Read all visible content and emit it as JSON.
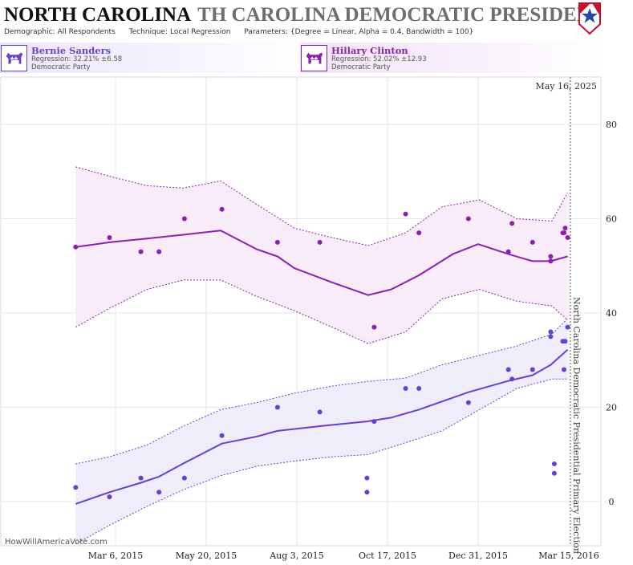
{
  "header": {
    "state_name": "NORTH CAROLINA",
    "title_ghost": "TH CAROLINA DEMOCRATIC PRESIDENTIAL P",
    "demographic_label": "Demographic:",
    "demographic_value": "All Respondents",
    "technique_label": "Technique:",
    "technique_value": "Local Regression",
    "parameters_label": "Parameters:",
    "parameters_value": "{Degree = Linear, Alpha = 0.4, Bandwidth = 100}"
  },
  "candidates": [
    {
      "name": "Bernie Sanders",
      "regression": "Regression: 32.21% ±6.58",
      "party": "Democratic Party",
      "icon": "democratic-donkey-icon",
      "color": "#6a3fd0"
    },
    {
      "name": "Hillary Clinton",
      "regression": "Regression: 52.02% ±12.93",
      "party": "Democratic Party",
      "icon": "democratic-donkey-icon",
      "color": "#8d1fb0"
    }
  ],
  "watermark": "HowWillAmericaVote.com",
  "colors": {
    "sanders": "#6a3fd0",
    "clinton": "#8d1fb0",
    "sanders_band": "#f0edfb",
    "clinton_band": "#f7ecf8",
    "grid": "#e6e6e6"
  },
  "chart_data": {
    "type": "scatter",
    "date_label": "May 16, 2025",
    "event_label": "North Carolina Democratic Presidential Primary Election",
    "x_ticks": [
      "Mar 6, 2015",
      "May 20, 2015",
      "Aug 3, 2015",
      "Oct 17, 2015",
      "Dec 31, 2015",
      "Mar 15, 2016"
    ],
    "y_ticks": [
      0,
      20,
      40,
      60,
      80
    ],
    "ylim": [
      -9,
      90
    ],
    "series": [
      {
        "name": "Bernie Sanders",
        "color": "#6a3fd0",
        "points": [
          [
            "2015-02-01",
            3
          ],
          [
            "2015-03-01",
            1
          ],
          [
            "2015-03-27",
            5
          ],
          [
            "2015-04-11",
            2
          ],
          [
            "2015-05-02",
            5
          ],
          [
            "2015-06-02",
            14
          ],
          [
            "2015-07-18",
            20
          ],
          [
            "2015-08-22",
            19
          ],
          [
            "2015-09-30",
            2
          ],
          [
            "2015-09-30",
            5
          ],
          [
            "2015-10-06",
            17
          ],
          [
            "2015-11-01",
            24
          ],
          [
            "2015-11-12",
            24
          ],
          [
            "2015-12-23",
            21
          ],
          [
            "2016-01-25",
            28
          ],
          [
            "2016-01-28",
            26
          ],
          [
            "2016-02-14",
            28
          ],
          [
            "2016-02-29",
            36
          ],
          [
            "2016-02-29",
            35
          ],
          [
            "2016-03-03",
            6
          ],
          [
            "2016-03-03",
            8
          ],
          [
            "2016-03-10",
            34
          ],
          [
            "2016-03-11",
            28
          ],
          [
            "2016-03-12",
            34
          ],
          [
            "2016-03-14",
            37
          ]
        ],
        "regression": [
          [
            "2015-02-01",
            -0.5
          ],
          [
            "2015-03-01",
            2
          ],
          [
            "2015-03-27",
            4
          ],
          [
            "2015-04-11",
            5.3
          ],
          [
            "2015-05-02",
            8.2
          ],
          [
            "2015-06-02",
            12.3
          ],
          [
            "2015-07-01",
            13.8
          ],
          [
            "2015-07-18",
            15
          ],
          [
            "2015-08-22",
            16
          ],
          [
            "2015-09-30",
            17
          ],
          [
            "2015-10-20",
            17.8
          ],
          [
            "2015-11-12",
            19.5
          ],
          [
            "2015-12-23",
            23.2
          ],
          [
            "2016-01-25",
            25.6
          ],
          [
            "2016-02-14",
            26.8
          ],
          [
            "2016-02-29",
            29
          ],
          [
            "2016-03-14",
            32.2
          ]
        ],
        "band_upper": [
          [
            "2015-02-01",
            8
          ],
          [
            "2015-03-01",
            9.5
          ],
          [
            "2015-04-01",
            12
          ],
          [
            "2015-05-01",
            16
          ],
          [
            "2015-06-01",
            19.5
          ],
          [
            "2015-07-01",
            21
          ],
          [
            "2015-08-01",
            23
          ],
          [
            "2015-09-01",
            24.5
          ],
          [
            "2015-10-01",
            25.5
          ],
          [
            "2015-11-01",
            26.2
          ],
          [
            "2015-12-01",
            29
          ],
          [
            "2016-01-01",
            31
          ],
          [
            "2016-02-01",
            33
          ],
          [
            "2016-03-01",
            35.5
          ],
          [
            "2016-03-14",
            38.8
          ]
        ],
        "band_lower": [
          [
            "2015-02-01",
            -9
          ],
          [
            "2015-03-01",
            -5
          ],
          [
            "2015-04-01",
            -1
          ],
          [
            "2015-05-01",
            2.5
          ],
          [
            "2015-06-01",
            5.5
          ],
          [
            "2015-07-01",
            7.5
          ],
          [
            "2015-08-01",
            8.6
          ],
          [
            "2015-09-01",
            9.5
          ],
          [
            "2015-10-01",
            10
          ],
          [
            "2015-11-01",
            12.5
          ],
          [
            "2015-12-01",
            15
          ],
          [
            "2016-01-01",
            19.5
          ],
          [
            "2016-02-01",
            24
          ],
          [
            "2016-03-01",
            26
          ],
          [
            "2016-03-14",
            26
          ]
        ]
      },
      {
        "name": "Hillary Clinton",
        "color": "#8d1fb0",
        "points": [
          [
            "2015-02-01",
            54
          ],
          [
            "2015-03-01",
            56
          ],
          [
            "2015-03-27",
            53
          ],
          [
            "2015-04-11",
            53
          ],
          [
            "2015-05-02",
            60
          ],
          [
            "2015-06-02",
            62
          ],
          [
            "2015-07-18",
            55
          ],
          [
            "2015-08-22",
            55
          ],
          [
            "2015-10-06",
            37
          ],
          [
            "2015-11-01",
            61
          ],
          [
            "2015-11-12",
            57
          ],
          [
            "2015-12-23",
            60
          ],
          [
            "2016-01-25",
            53
          ],
          [
            "2016-01-28",
            59
          ],
          [
            "2016-02-14",
            55
          ],
          [
            "2016-02-29",
            52
          ],
          [
            "2016-02-29",
            51
          ],
          [
            "2016-03-10",
            57
          ],
          [
            "2016-03-11",
            57
          ],
          [
            "2016-03-12",
            58
          ],
          [
            "2016-03-14",
            56
          ]
        ],
        "regression": [
          [
            "2015-02-01",
            54
          ],
          [
            "2015-03-01",
            55
          ],
          [
            "2015-04-01",
            55.8
          ],
          [
            "2015-05-01",
            56.6
          ],
          [
            "2015-06-01",
            57.5
          ],
          [
            "2015-07-01",
            53.5
          ],
          [
            "2015-07-18",
            52
          ],
          [
            "2015-08-01",
            49.5
          ],
          [
            "2015-09-01",
            46.5
          ],
          [
            "2015-10-01",
            43.8
          ],
          [
            "2015-10-20",
            45
          ],
          [
            "2015-11-12",
            48
          ],
          [
            "2015-12-10",
            52.5
          ],
          [
            "2015-12-31",
            54.6
          ],
          [
            "2016-01-25",
            52.5
          ],
          [
            "2016-02-14",
            51
          ],
          [
            "2016-02-29",
            51
          ],
          [
            "2016-03-14",
            52
          ]
        ],
        "band_upper": [
          [
            "2015-02-01",
            71
          ],
          [
            "2015-03-01",
            69
          ],
          [
            "2015-04-01",
            67
          ],
          [
            "2015-05-01",
            66.5
          ],
          [
            "2015-06-01",
            68
          ],
          [
            "2015-07-01",
            63
          ],
          [
            "2015-08-01",
            58
          ],
          [
            "2015-09-01",
            56
          ],
          [
            "2015-10-01",
            54.3
          ],
          [
            "2015-11-01",
            57
          ],
          [
            "2015-12-01",
            62.5
          ],
          [
            "2016-01-01",
            64
          ],
          [
            "2016-02-01",
            60
          ],
          [
            "2016-03-01",
            59.5
          ],
          [
            "2016-03-14",
            65.5
          ]
        ],
        "band_lower": [
          [
            "2015-02-01",
            37
          ],
          [
            "2015-03-01",
            41
          ],
          [
            "2015-04-01",
            45
          ],
          [
            "2015-05-01",
            47
          ],
          [
            "2015-06-01",
            47
          ],
          [
            "2015-07-01",
            43.5
          ],
          [
            "2015-08-01",
            40.5
          ],
          [
            "2015-09-01",
            37
          ],
          [
            "2015-10-01",
            33.5
          ],
          [
            "2015-11-01",
            36
          ],
          [
            "2015-12-01",
            43
          ],
          [
            "2016-01-01",
            45
          ],
          [
            "2016-02-01",
            42.5
          ],
          [
            "2016-03-01",
            41.5
          ],
          [
            "2016-03-14",
            38.5
          ]
        ]
      }
    ]
  }
}
